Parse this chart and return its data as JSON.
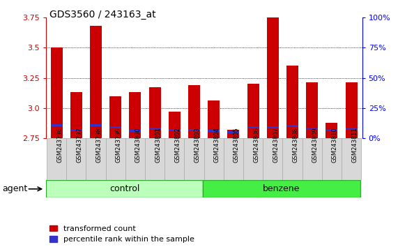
{
  "title": "GDS3560 / 243163_at",
  "samples": [
    "GSM243796",
    "GSM243797",
    "GSM243798",
    "GSM243799",
    "GSM243800",
    "GSM243801",
    "GSM243802",
    "GSM243803",
    "GSM243804",
    "GSM243805",
    "GSM243806",
    "GSM243807",
    "GSM243808",
    "GSM243809",
    "GSM243810",
    "GSM243811"
  ],
  "red_values": [
    3.5,
    3.13,
    3.68,
    3.1,
    3.13,
    3.17,
    2.97,
    3.19,
    3.06,
    2.82,
    3.2,
    3.88,
    3.35,
    3.21,
    2.88,
    3.21
  ],
  "blue_values": [
    2.86,
    2.82,
    2.86,
    2.84,
    2.81,
    2.83,
    2.82,
    2.82,
    2.81,
    2.8,
    2.84,
    2.84,
    2.85,
    2.83,
    2.82,
    2.83
  ],
  "n_control": 8,
  "ylim_left": [
    2.75,
    3.75
  ],
  "ylim_right": [
    0,
    100
  ],
  "yticks_left": [
    2.75,
    3.0,
    3.25,
    3.5,
    3.75
  ],
  "yticks_right": [
    0,
    25,
    50,
    75,
    100
  ],
  "ytick_labels_right": [
    "0%",
    "25%",
    "50%",
    "75%",
    "100%"
  ],
  "bar_width": 0.6,
  "red_color": "#cc0000",
  "blue_color": "#3333cc",
  "control_color": "#bbffbb",
  "benzene_color": "#44ee44",
  "agent_label": "agent",
  "control_label": "control",
  "benzene_label": "benzene",
  "legend_red": "transformed count",
  "legend_blue": "percentile rank within the sample",
  "bg_plot": "#ffffff",
  "bg_fig": "#ffffff",
  "grid_lines": [
    3.0,
    3.25,
    3.5
  ],
  "xticklabel_bg": "#d8d8d8"
}
